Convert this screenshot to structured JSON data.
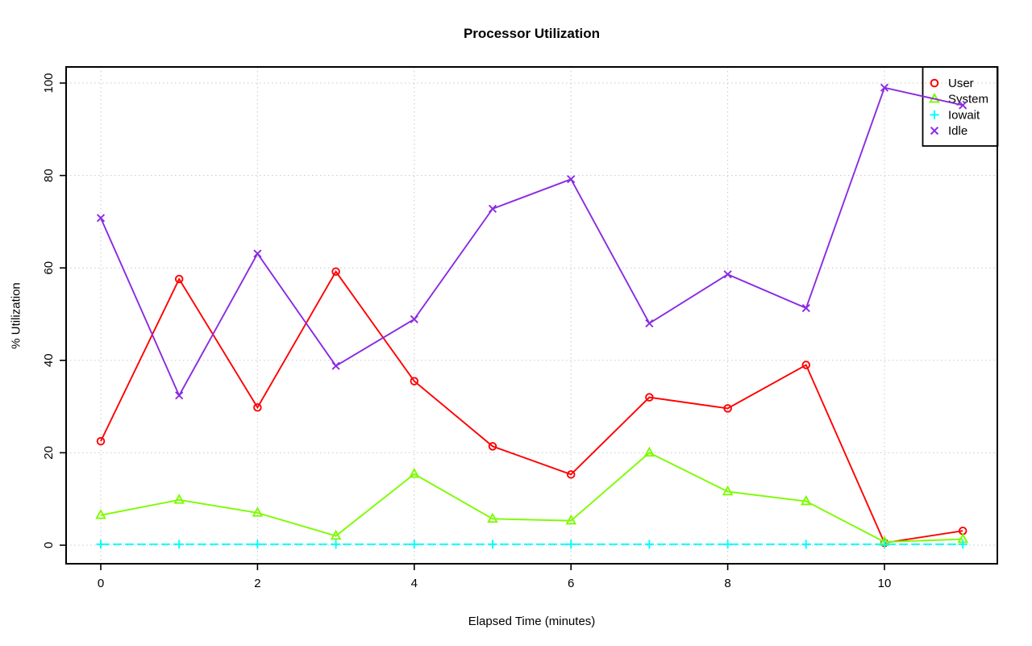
{
  "chart_data": {
    "type": "line",
    "title": "Processor Utilization",
    "xlabel": "Elapsed Time (minutes)",
    "ylabel": "% Utilization",
    "x": [
      0,
      1,
      2,
      3,
      4,
      5,
      6,
      7,
      8,
      9,
      10,
      11
    ],
    "series": [
      {
        "name": "User",
        "color": "#ff0000",
        "marker": "circle",
        "linestyle": "solid",
        "values": [
          22.5,
          57.6,
          29.8,
          59.2,
          35.5,
          21.4,
          15.3,
          32.0,
          29.6,
          39.0,
          0.5,
          3.1
        ]
      },
      {
        "name": "System",
        "color": "#7cfc00",
        "marker": "triangle",
        "linestyle": "solid",
        "values": [
          6.5,
          9.8,
          7.0,
          2.0,
          15.4,
          5.7,
          5.3,
          20.0,
          11.6,
          9.5,
          0.7,
          1.3
        ]
      },
      {
        "name": "Iowait",
        "color": "#00ffff",
        "marker": "plus",
        "linestyle": "dashed",
        "values": [
          0.2,
          0.2,
          0.2,
          0.2,
          0.2,
          0.2,
          0.2,
          0.2,
          0.2,
          0.2,
          0.2,
          0.2
        ]
      },
      {
        "name": "Idle",
        "color": "#8a2be2",
        "marker": "x",
        "linestyle": "solid",
        "values": [
          70.8,
          32.4,
          63.1,
          38.8,
          48.9,
          72.8,
          79.2,
          48.0,
          58.6,
          51.3,
          99.0,
          95.2
        ]
      }
    ],
    "xlim": [
      0,
      11
    ],
    "ylim": [
      0,
      100
    ],
    "xticks": [
      "0",
      "2",
      "4",
      "6",
      "8",
      "10"
    ],
    "yticks": [
      "0",
      "20",
      "40",
      "60",
      "80",
      "100"
    ],
    "grid": true,
    "grid_color": "#c8c8c8",
    "axis_color": "#000000",
    "legend_position": "top-right"
  }
}
